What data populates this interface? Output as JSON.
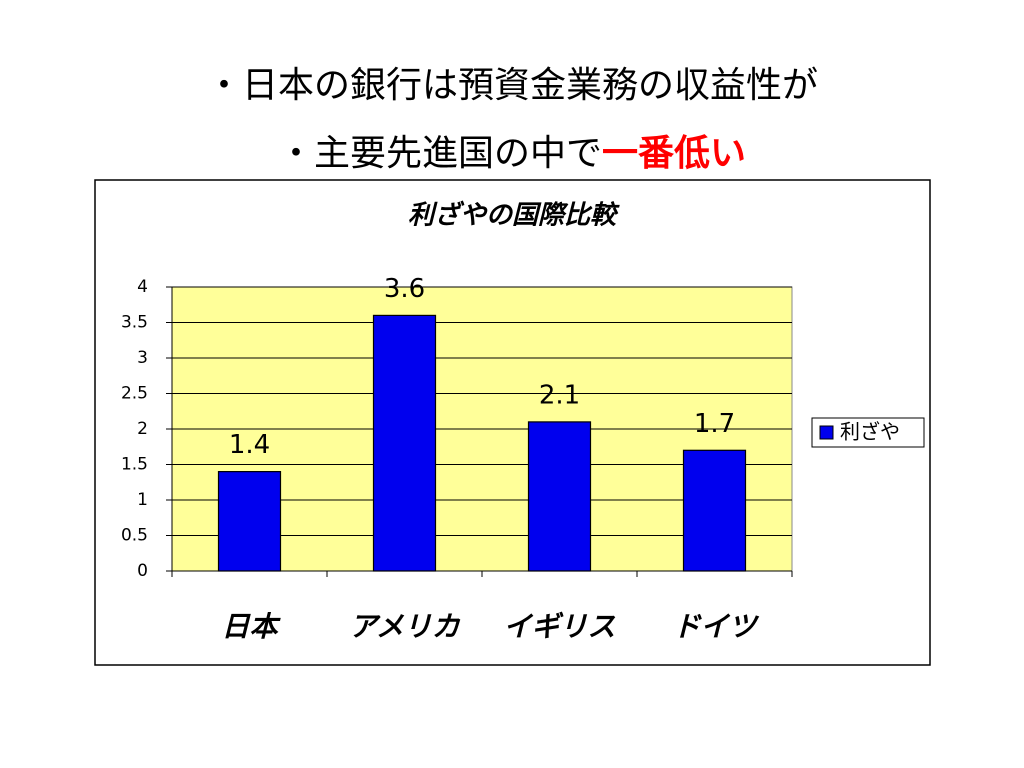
{
  "heading": {
    "line1": "・日本の銀行は預資金業務の収益性が",
    "line2": "・主要先進国の中で",
    "emphasis": "一番低い"
  },
  "chart_data": {
    "type": "bar",
    "title": "利ざやの国際比較",
    "categories": [
      "日本",
      "アメリカ",
      "イギリス",
      "ドイツ"
    ],
    "series": [
      {
        "name": "利ざや",
        "color": "#0000ee",
        "values": [
          1.4,
          3.6,
          2.1,
          1.7
        ]
      }
    ],
    "ylim": [
      0,
      4
    ],
    "yticks": [
      0,
      0.5,
      1,
      1.5,
      2,
      2.5,
      3,
      3.5,
      4
    ],
    "grid": true,
    "legend": "right",
    "plot_background": "#ffff99"
  }
}
